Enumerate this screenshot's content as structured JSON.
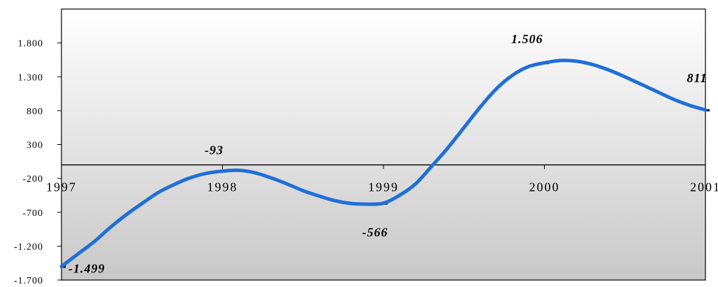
{
  "chart_data": {
    "type": "line",
    "title": "",
    "xlabel": "",
    "ylabel": "",
    "ylim": [
      -1700,
      2300
    ],
    "xlim": [
      1997,
      2001
    ],
    "y_ticks": [
      {
        "value": -1700,
        "label": "-1.700"
      },
      {
        "value": -1200,
        "label": "-1.200"
      },
      {
        "value": -700,
        "label": "-700"
      },
      {
        "value": -200,
        "label": "-200"
      },
      {
        "value": 300,
        "label": "300"
      },
      {
        "value": 800,
        "label": "800"
      },
      {
        "value": 1300,
        "label": "1.300"
      },
      {
        "value": 1800,
        "label": "1.800"
      }
    ],
    "x_ticks": [
      {
        "value": 1997,
        "label": "1997"
      },
      {
        "value": 1998,
        "label": "1998"
      },
      {
        "value": 1999,
        "label": "1999"
      },
      {
        "value": 2000,
        "label": "2000"
      },
      {
        "value": 2001,
        "label": "2001"
      }
    ],
    "series": [
      {
        "color": "#1f6fd6",
        "x": [
          1997.0,
          1997.1,
          1997.2,
          1997.3,
          1997.4,
          1997.5,
          1997.6,
          1997.7,
          1997.8,
          1997.9,
          1998.0,
          1998.1,
          1998.2,
          1998.3,
          1998.4,
          1998.5,
          1998.6,
          1998.7,
          1998.8,
          1998.9,
          1999.0,
          1999.1,
          1999.2,
          1999.3,
          1999.4,
          1999.5,
          1999.6,
          1999.7,
          1999.8,
          1999.9,
          2000.0,
          2000.1,
          2000.2,
          2000.3,
          2000.4,
          2000.5,
          2000.6,
          2000.7,
          2000.8,
          2000.9,
          2001.0
        ],
        "y": [
          -1499,
          -1320,
          -1140,
          -930,
          -740,
          -570,
          -410,
          -290,
          -190,
          -125,
          -93,
          -80,
          -115,
          -190,
          -280,
          -380,
          -460,
          -530,
          -570,
          -580,
          -566,
          -450,
          -280,
          -20,
          250,
          550,
          850,
          1120,
          1320,
          1450,
          1506,
          1540,
          1530,
          1480,
          1400,
          1300,
          1190,
          1080,
          970,
          880,
          811
        ]
      }
    ],
    "data_labels": [
      {
        "x": 1997,
        "y": -1499,
        "text": "-1.499"
      },
      {
        "x": 1998,
        "y": -93,
        "text": "-93"
      },
      {
        "x": 1999,
        "y": -566,
        "text": "-566"
      },
      {
        "x": 2000,
        "y": 1506,
        "text": "1.506"
      },
      {
        "x": 2001,
        "y": 811,
        "text": "811"
      }
    ],
    "background": {
      "fill_top": "#ffffff",
      "fill_bottom": "#c8c8c8"
    },
    "legend": "none",
    "grid": false
  }
}
